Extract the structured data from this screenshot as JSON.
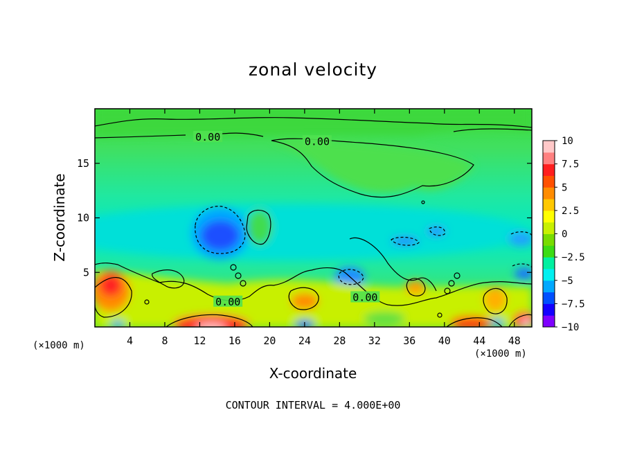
{
  "chart_data": {
    "type": "heatmap",
    "title": "zonal velocity",
    "xlabel": "X-coordinate",
    "ylabel": "Z-coordinate",
    "x_unit_left": "(×1000 m)",
    "x_unit_right": "(×1000 m)",
    "xlim": [
      0,
      50
    ],
    "ylim": [
      0,
      20
    ],
    "x_ticks": [
      4,
      8,
      12,
      16,
      20,
      24,
      28,
      32,
      36,
      40,
      44,
      48
    ],
    "y_ticks": [
      5,
      10,
      15
    ],
    "colorbar": {
      "ticks": [
        "10",
        "7.5",
        "5",
        "2.5",
        "0",
        "−2.5",
        "−5",
        "−7.5",
        "−10"
      ],
      "range": [
        -10,
        10
      ],
      "colors": [
        "#7f00ff",
        "#1400ff",
        "#0050ff",
        "#00a8ff",
        "#00f0f0",
        "#00f0a0",
        "#3cdc14",
        "#78dc00",
        "#c8f000",
        "#ffff00",
        "#ffc800",
        "#ff8c00",
        "#ff5000",
        "#ff1e1e",
        "#ff8080",
        "#ffc8c8"
      ]
    },
    "contour_labels": [
      {
        "text": "0.00",
        "x": 11.5,
        "y": 17.4
      },
      {
        "text": "0.00",
        "x": 24.0,
        "y": 17.0
      },
      {
        "text": "0.00",
        "x": 13.8,
        "y": 2.3
      },
      {
        "text": "0.00",
        "x": 29.5,
        "y": 2.7
      }
    ],
    "features": [
      {
        "kind": "negative",
        "value": -6.5,
        "x": 14,
        "y": 8.5
      },
      {
        "kind": "positive",
        "value": 6.0,
        "x": 2.5,
        "y": 3.8
      },
      {
        "kind": "positive",
        "value": 10.0,
        "x": 13.5,
        "y": 0.2
      },
      {
        "kind": "positive",
        "value": 10.0,
        "x": 49,
        "y": 0.4
      },
      {
        "kind": "positive",
        "value": 5.5,
        "x": 24,
        "y": 2.3
      },
      {
        "kind": "negative",
        "value": -5.0,
        "x": 29.5,
        "y": 4.8
      },
      {
        "kind": "positive",
        "value": 5.0,
        "x": 36,
        "y": 3.5
      }
    ],
    "contour_interval_text": "CONTOUR INTERVAL = 4.000E+00"
  }
}
